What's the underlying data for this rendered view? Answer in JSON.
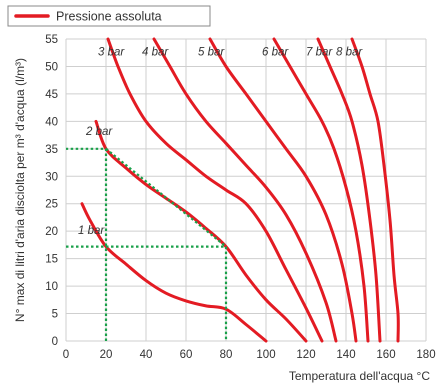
{
  "legend": {
    "label": "Pressione assoluta",
    "color": "#e31b23"
  },
  "chart_data": {
    "type": "line",
    "title": "",
    "xlabel": "Temperatura dell'acqua °C",
    "ylabel": "N° max di litri d'aria disciolta per m³ d'acqua (l/m³)",
    "xlim": [
      0,
      180
    ],
    "ylim": [
      0,
      55
    ],
    "x_ticks": [
      "0",
      "20",
      "40",
      "60",
      "80",
      "100",
      "120",
      "140",
      "160",
      "180"
    ],
    "y_ticks": [
      "0",
      "5",
      "10",
      "15",
      "20",
      "25",
      "30",
      "35",
      "40",
      "45",
      "50",
      "55"
    ],
    "grid": true,
    "curve_color": "#e31b23",
    "guide_color": "#1aa04a",
    "series": [
      {
        "name": "1 bar",
        "points": [
          [
            8,
            25
          ],
          [
            12,
            22
          ],
          [
            20,
            17.2
          ],
          [
            30,
            14
          ],
          [
            40,
            11
          ],
          [
            50,
            8.7
          ],
          [
            60,
            7.3
          ],
          [
            70,
            6.4
          ],
          [
            80,
            5.8
          ],
          [
            90,
            3
          ],
          [
            100,
            0
          ]
        ]
      },
      {
        "name": "2 bar",
        "points": [
          [
            15,
            40
          ],
          [
            20,
            35
          ],
          [
            30,
            31.5
          ],
          [
            40,
            28.5
          ],
          [
            50,
            26
          ],
          [
            60,
            23.5
          ],
          [
            70,
            20.5
          ],
          [
            80,
            17.2
          ],
          [
            90,
            12
          ],
          [
            100,
            7.5
          ],
          [
            110,
            4
          ],
          [
            120,
            0
          ]
        ]
      },
      {
        "name": "3 bar",
        "points": [
          [
            21,
            55
          ],
          [
            26,
            50
          ],
          [
            32,
            45
          ],
          [
            40,
            40
          ],
          [
            50,
            36
          ],
          [
            60,
            33
          ],
          [
            70,
            30
          ],
          [
            80,
            27.5
          ],
          [
            90,
            25
          ],
          [
            100,
            20
          ],
          [
            110,
            13
          ],
          [
            120,
            6
          ],
          [
            128,
            0
          ]
        ]
      },
      {
        "name": "4 bar",
        "points": [
          [
            44,
            55
          ],
          [
            52,
            50
          ],
          [
            60,
            45
          ],
          [
            70,
            40
          ],
          [
            80,
            36
          ],
          [
            90,
            32
          ],
          [
            100,
            28
          ],
          [
            110,
            23
          ],
          [
            120,
            16
          ],
          [
            130,
            7
          ],
          [
            135,
            0
          ]
        ]
      },
      {
        "name": "5 bar",
        "points": [
          [
            72,
            55
          ],
          [
            80,
            50
          ],
          [
            90,
            45
          ],
          [
            100,
            40
          ],
          [
            110,
            35
          ],
          [
            120,
            30
          ],
          [
            130,
            23
          ],
          [
            138,
            14
          ],
          [
            143,
            5
          ],
          [
            145,
            0
          ]
        ]
      },
      {
        "name": "6 bar",
        "points": [
          [
            104,
            55
          ],
          [
            112,
            50
          ],
          [
            120,
            45
          ],
          [
            128,
            40
          ],
          [
            134,
            35
          ],
          [
            140,
            28
          ],
          [
            145,
            20
          ],
          [
            149,
            10
          ],
          [
            151,
            0
          ]
        ]
      },
      {
        "name": "7 bar",
        "points": [
          [
            126,
            55
          ],
          [
            132,
            50
          ],
          [
            138,
            45
          ],
          [
            143,
            40
          ],
          [
            148,
            32
          ],
          [
            152,
            22
          ],
          [
            155,
            12
          ],
          [
            157,
            0
          ]
        ]
      },
      {
        "name": "8 bar",
        "points": [
          [
            143,
            55
          ],
          [
            148,
            50
          ],
          [
            152,
            45
          ],
          [
            156,
            40
          ],
          [
            159,
            32
          ],
          [
            162,
            22
          ],
          [
            164,
            12
          ],
          [
            166,
            5
          ],
          [
            166,
            0
          ]
        ]
      }
    ],
    "curve_labels": [
      {
        "text": "1 bar",
        "x": 6,
        "y": 19.5
      },
      {
        "text": "2 bar",
        "x": 10,
        "y": 37.5
      },
      {
        "text": "3 bar",
        "x": 16,
        "y": 52
      },
      {
        "text": "4 bar",
        "x": 38,
        "y": 52
      },
      {
        "text": "5 bar",
        "x": 66,
        "y": 52
      },
      {
        "text": "6 bar",
        "x": 98,
        "y": 52
      },
      {
        "text": "7 bar",
        "x": 120,
        "y": 52
      },
      {
        "text": "8 bar",
        "x": 135,
        "y": 52
      }
    ],
    "guides": [
      {
        "points": [
          [
            20,
            0
          ],
          [
            20,
            35
          ],
          [
            0,
            35
          ]
        ]
      },
      {
        "points": [
          [
            20,
            35
          ],
          [
            80,
            17.2
          ]
        ]
      },
      {
        "points": [
          [
            0,
            17.2
          ],
          [
            80,
            17.2
          ],
          [
            80,
            0
          ]
        ]
      }
    ]
  }
}
